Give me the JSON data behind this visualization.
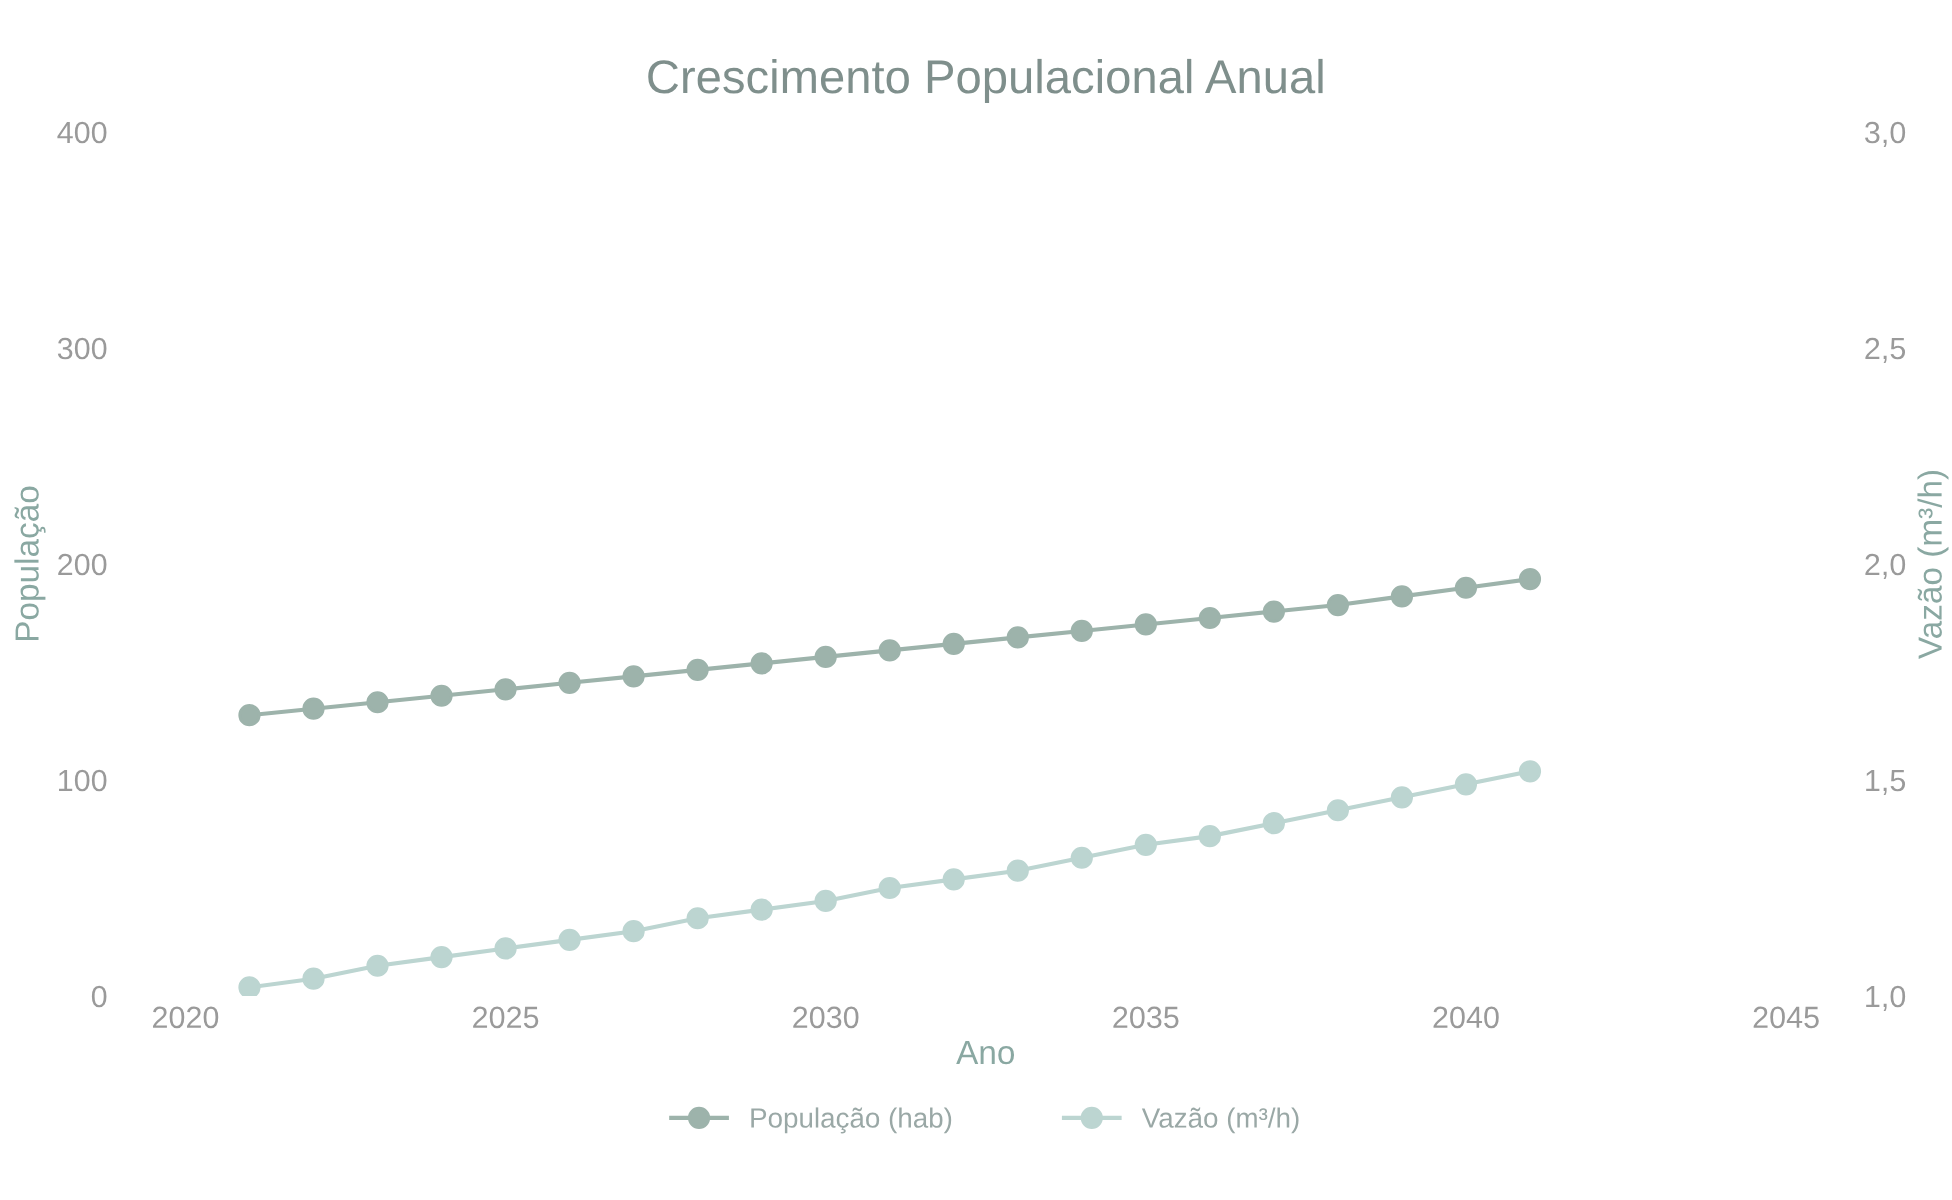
{
  "chart_data": {
    "type": "line",
    "title": "Crescimento Populacional Anual",
    "xlabel": "Ano",
    "ylabel": "População",
    "y2label": "Vazão (m³/h)",
    "x": [
      2021,
      2022,
      2023,
      2024,
      2025,
      2026,
      2027,
      2028,
      2029,
      2030,
      2031,
      2032,
      2033,
      2034,
      2035,
      2036,
      2037,
      2038,
      2039,
      2040,
      2041
    ],
    "series": [
      {
        "name": "População (hab)",
        "color": "#9db3ab",
        "values": [
          130,
          133,
          136,
          139,
          142,
          145,
          148,
          151,
          154,
          157,
          160,
          163,
          166,
          169,
          172,
          175,
          178,
          181,
          185,
          189,
          193
        ]
      },
      {
        "name": "Vazão (m³/h)",
        "color": "#bcd5d1",
        "axis": "y2",
        "values": [
          1.02,
          1.04,
          1.07,
          1.09,
          1.11,
          1.13,
          1.15,
          1.18,
          1.2,
          1.22,
          1.25,
          1.27,
          1.29,
          1.32,
          1.35,
          1.37,
          1.4,
          1.43,
          1.46,
          1.49,
          1.52
        ]
      }
    ],
    "xlim": [
      2020,
      2045
    ],
    "xticks": [
      2020,
      2025,
      2030,
      2035,
      2040,
      2045
    ],
    "ylim": [
      0,
      400
    ],
    "yticks": [
      0,
      100,
      200,
      300,
      400
    ],
    "y2lim": [
      1.0,
      3.0
    ],
    "y2ticks": [
      {
        "value": 1.0,
        "label": "1,0"
      },
      {
        "value": 1.5,
        "label": "1,5"
      },
      {
        "value": 2.0,
        "label": "2,0"
      },
      {
        "value": 2.5,
        "label": "2,5"
      },
      {
        "value": 3.0,
        "label": "3,0"
      }
    ],
    "marker": "circle",
    "line_style": "solid",
    "grid": false,
    "legend": "bottom"
  }
}
